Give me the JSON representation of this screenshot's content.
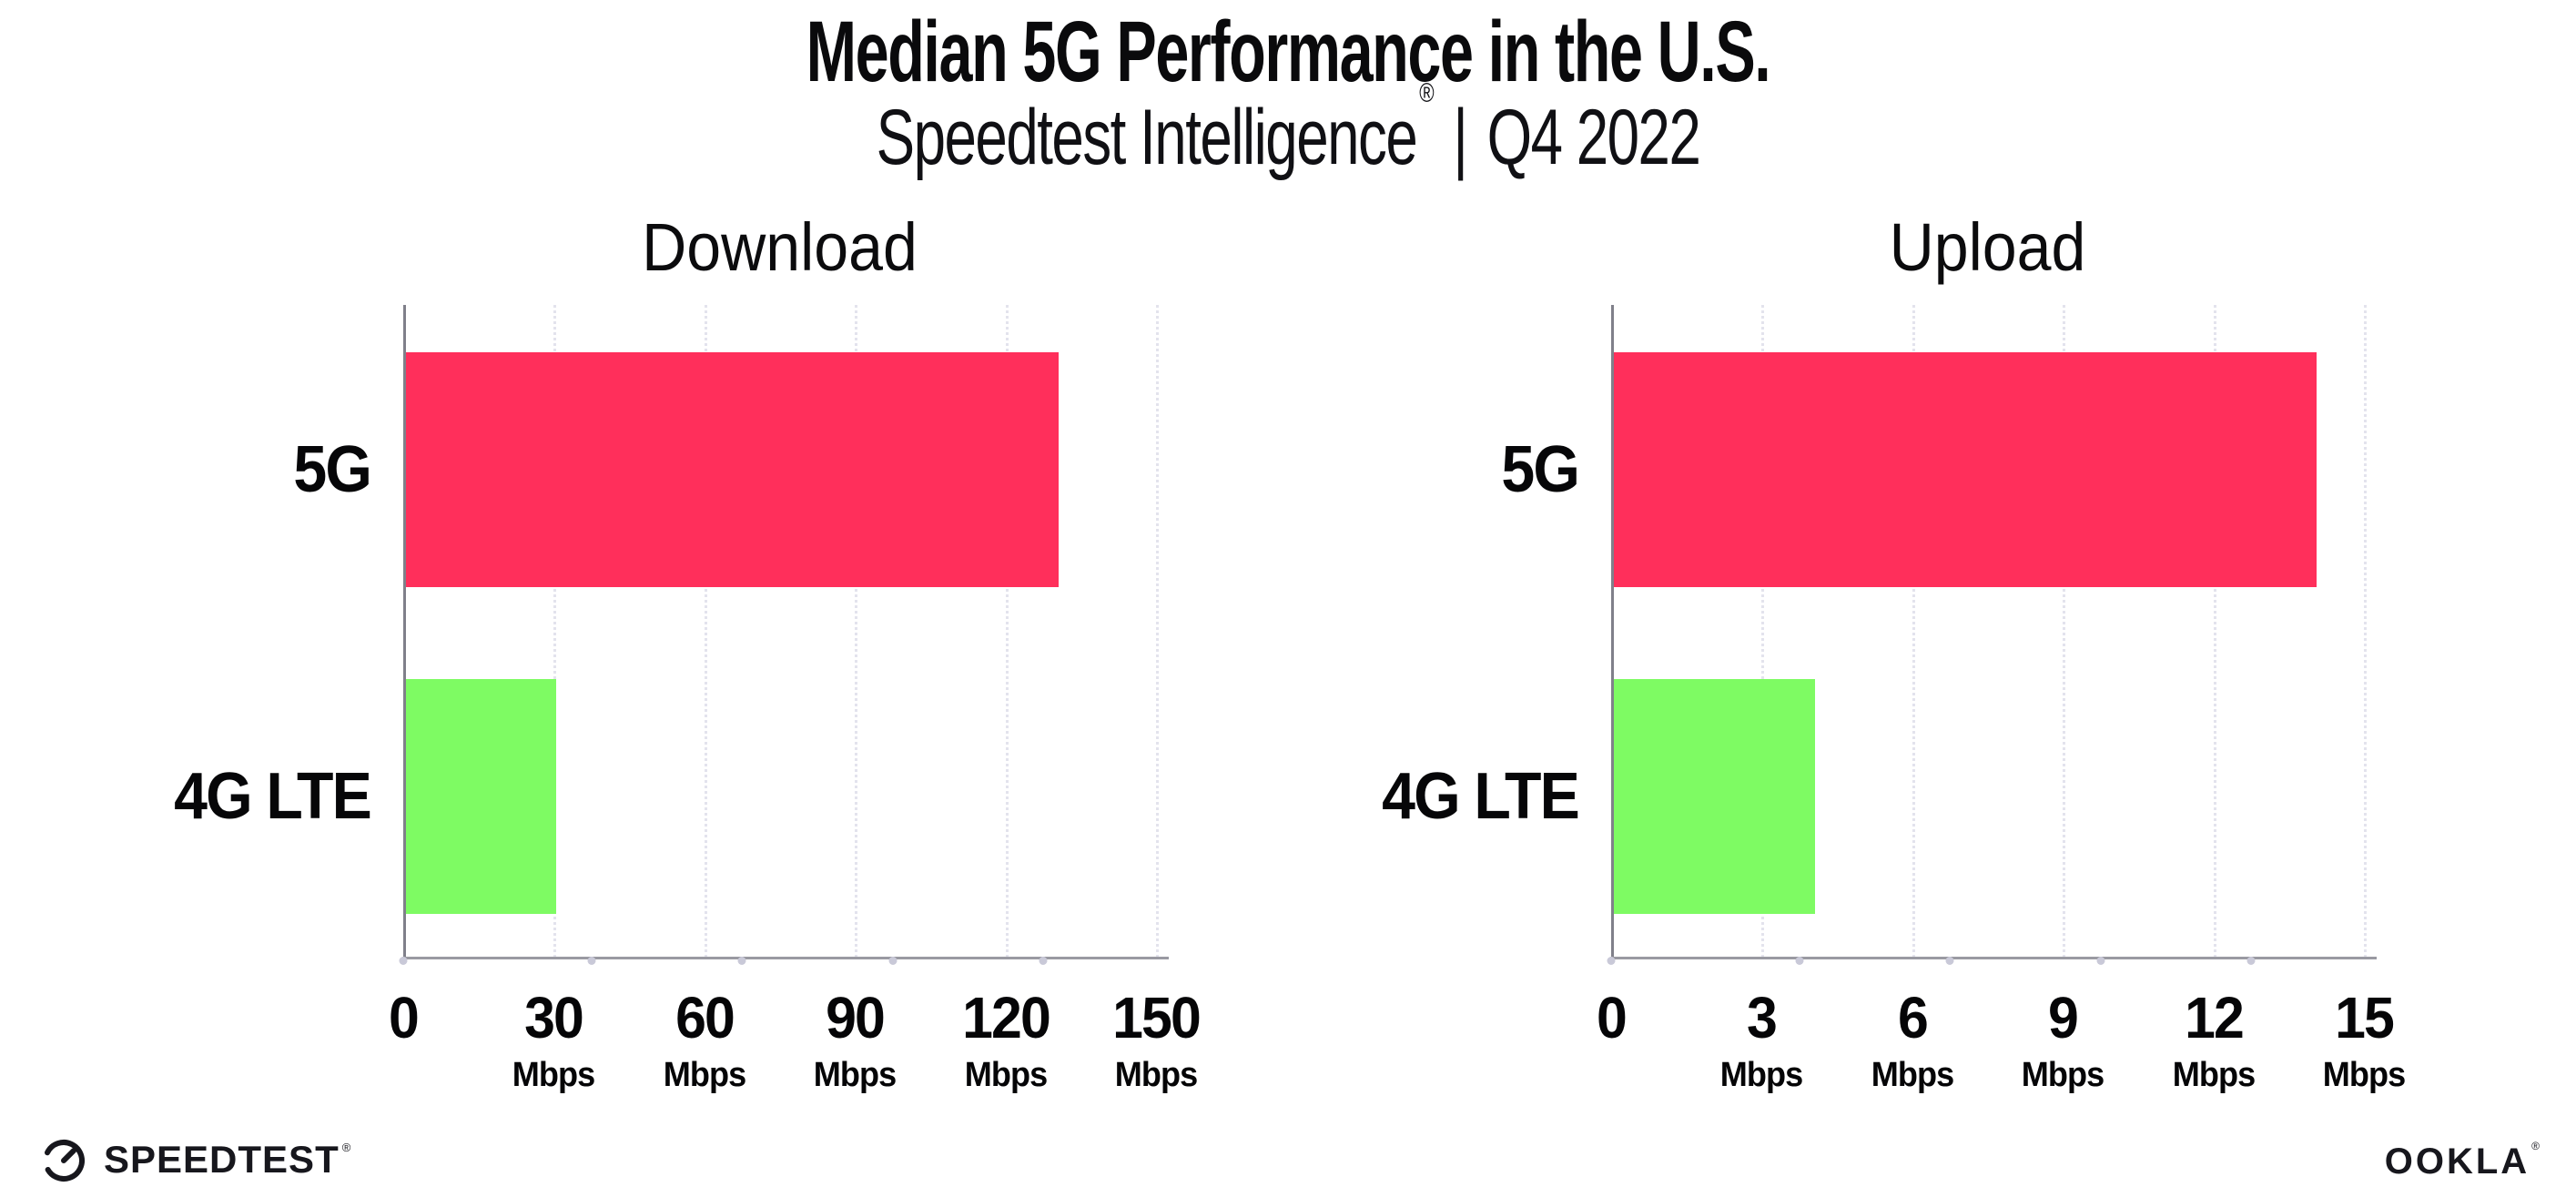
{
  "header": {
    "title": "Median 5G Performance in the U.S.",
    "subtitle_brand": "Speedtest Intelligence",
    "subtitle_registered": "®",
    "subtitle_separator": "|",
    "subtitle_period": "Q4 2022"
  },
  "chart_data": [
    {
      "type": "bar",
      "orientation": "horizontal",
      "title": "Download",
      "categories": [
        "5G",
        "4G LTE"
      ],
      "values": [
        130,
        30
      ],
      "value_unit": "Mbps",
      "xlim": [
        0,
        150
      ],
      "xticks": [
        0,
        30,
        60,
        90,
        120,
        150
      ],
      "tick_unit": "Mbps",
      "grid": "dotted-vertical",
      "legend": "none",
      "bar_colors": [
        "#FF2F5B",
        "#7EFB63"
      ]
    },
    {
      "type": "bar",
      "orientation": "horizontal",
      "title": "Upload",
      "categories": [
        "5G",
        "4G LTE"
      ],
      "values": [
        14,
        4
      ],
      "value_unit": "Mbps",
      "xlim": [
        0,
        15
      ],
      "xticks": [
        0,
        3,
        6,
        9,
        12,
        15
      ],
      "tick_unit": "Mbps",
      "grid": "dotted-vertical",
      "legend": "none",
      "bar_colors": [
        "#FF2F5B",
        "#7EFB63"
      ]
    }
  ],
  "footer": {
    "speedtest_label": "SPEEDTEST",
    "speedtest_registered": "®",
    "ookla_label": "OOKLA",
    "ookla_registered": "®"
  },
  "colors": {
    "bar_5g": "#FF2F5B",
    "bar_4g_lte": "#7EFB63",
    "axis_line": "#9A9AA2",
    "gridline": "#E3E3ED",
    "text": "#0B0B0D",
    "background": "#FFFFFF"
  }
}
